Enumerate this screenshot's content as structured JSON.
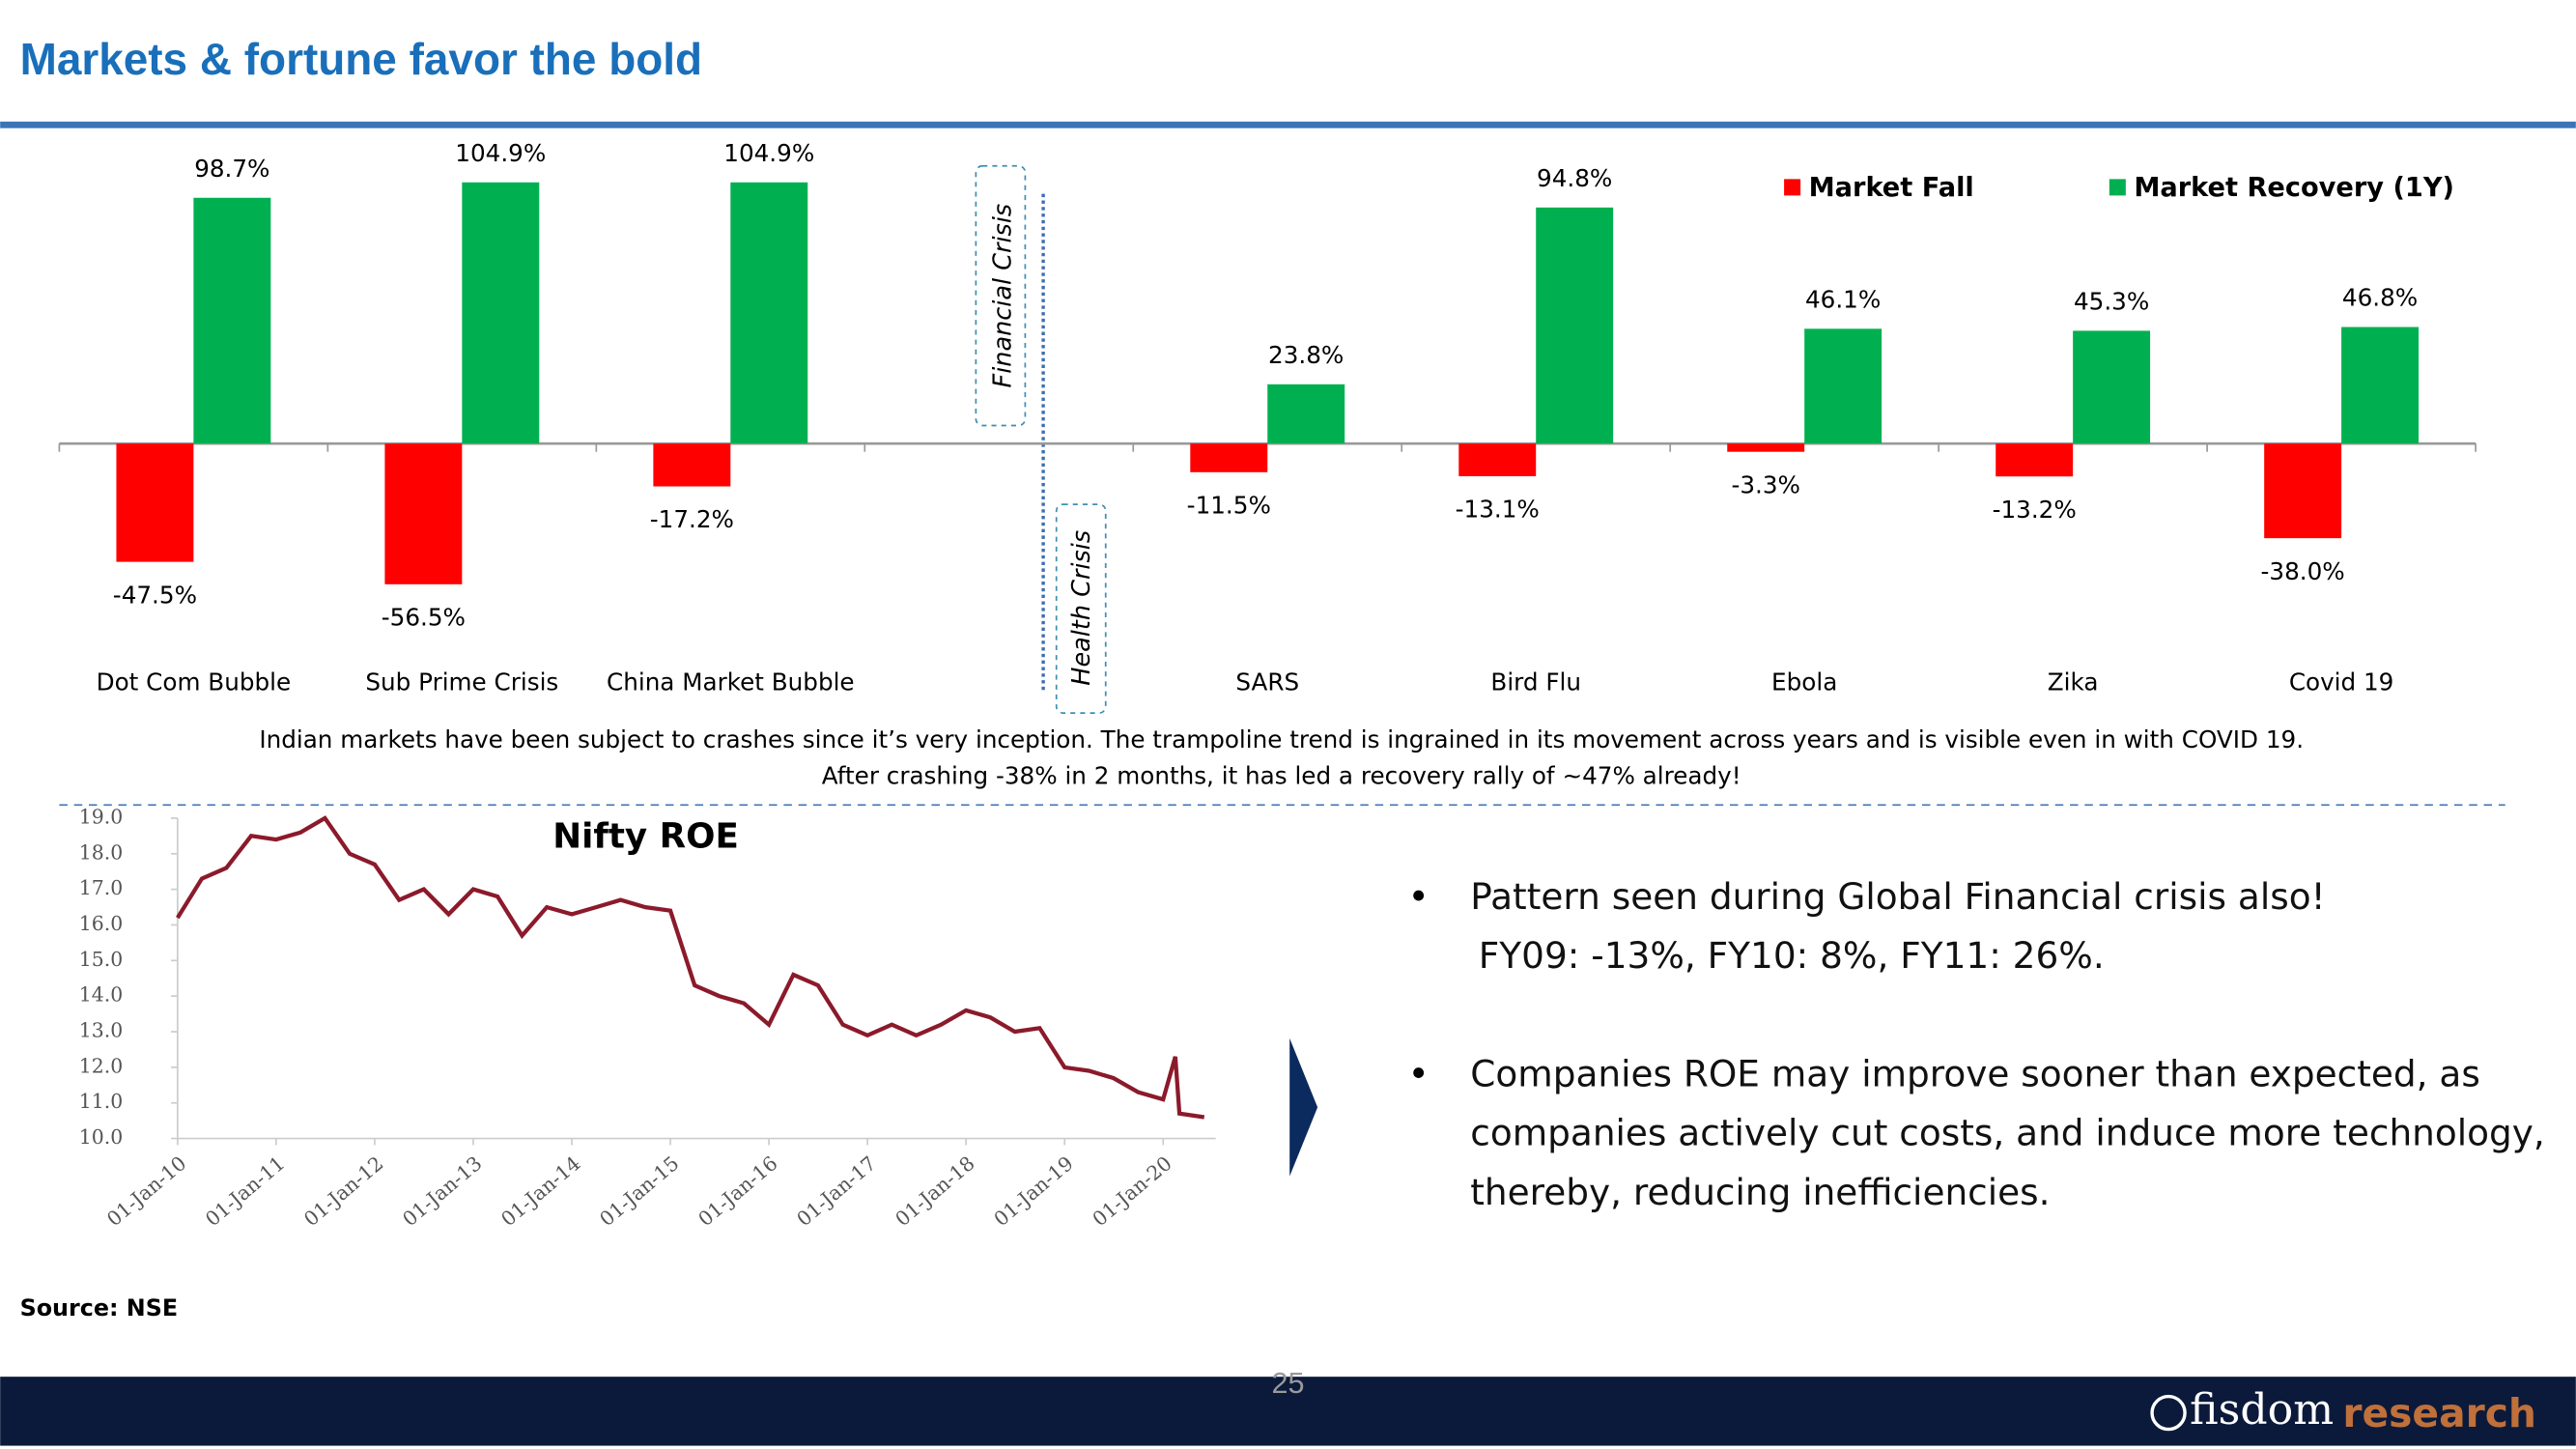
{
  "slide": {
    "title": "Markets & fortune favor the bold",
    "caption": [
      "Indian markets have been subject to crashes since it’s very inception. The trampoline trend is ingrained in its movement across years and is visible even in with COVID 19.",
      "After crashing -38% in 2 months, it has led a recovery rally of ~47% already!"
    ],
    "bullets": [
      {
        "lines": [
          "Pattern seen during Global Financial crisis also!",
          "FY09: -13%, FY10: 8%, FY11: 26%."
        ]
      },
      {
        "lines": [
          "Companies ROE may improve sooner than expected, as",
          "companies actively cut costs, and induce more technology,",
          "thereby, reducing inefficiencies."
        ]
      }
    ],
    "source": "Source: NSE",
    "page_number": "25",
    "logo": {
      "name": "fisdom",
      "suffix": "research"
    }
  },
  "chart_data": [
    {
      "type": "bar",
      "categories": [
        "Dot Com Bubble",
        "Sub Prime Crisis",
        "China Market Bubble",
        null,
        "SARS",
        "Bird Flu",
        "Ebola",
        "Zika",
        "Covid 19"
      ],
      "series": [
        {
          "name": "Market Fall",
          "color": "#ff0000",
          "values": [
            -47.5,
            -56.5,
            -17.2,
            null,
            -11.5,
            -13.1,
            -3.3,
            -13.2,
            -38.0
          ],
          "value_labels": [
            "-47.5%",
            "-56.5%",
            "-17.2%",
            null,
            "-11.5%",
            "-13.1%",
            "-3.3%",
            "-13.2%",
            "-38.0%"
          ]
        },
        {
          "name": "Market Recovery (1Y)",
          "color": "#00b050",
          "values": [
            98.7,
            104.9,
            104.9,
            null,
            23.8,
            94.8,
            46.1,
            45.3,
            46.8
          ],
          "value_labels": [
            "98.7%",
            "104.9%",
            "104.9%",
            null,
            "23.8%",
            "94.8%",
            "46.1%",
            "45.3%",
            "46.8%"
          ]
        }
      ],
      "annotations": [
        "Financial Crisis",
        "Health Crisis"
      ],
      "legend": "top-right"
    },
    {
      "type": "line",
      "title": "Nifty ROE",
      "color": "#8b1a2b",
      "x": [
        "2010-01-01",
        "2010-04-01",
        "2010-07-01",
        "2010-10-01",
        "2011-01-01",
        "2011-04-01",
        "2011-07-01",
        "2011-10-01",
        "2012-01-01",
        "2012-04-01",
        "2012-07-01",
        "2012-10-01",
        "2013-01-01",
        "2013-04-01",
        "2013-07-01",
        "2013-10-01",
        "2014-01-01",
        "2014-04-01",
        "2014-07-01",
        "2014-10-01",
        "2015-01-01",
        "2015-04-01",
        "2015-07-01",
        "2015-10-01",
        "2016-01-01",
        "2016-04-01",
        "2016-07-01",
        "2016-10-01",
        "2017-01-01",
        "2017-04-01",
        "2017-07-01",
        "2017-10-01",
        "2018-01-01",
        "2018-04-01",
        "2018-07-01",
        "2018-10-01",
        "2019-01-01",
        "2019-04-01",
        "2019-07-01",
        "2019-10-01",
        "2020-01-01",
        "2020-02-15",
        "2020-03-01",
        "2020-06-01"
      ],
      "values": [
        16.2,
        17.3,
        17.6,
        18.5,
        18.4,
        18.6,
        19.0,
        18.0,
        17.7,
        16.7,
        17.0,
        16.3,
        17.0,
        16.8,
        15.7,
        16.5,
        16.3,
        16.5,
        16.7,
        16.5,
        16.4,
        14.3,
        14.0,
        13.8,
        13.2,
        14.6,
        14.3,
        13.2,
        12.9,
        13.2,
        12.9,
        13.2,
        13.6,
        13.4,
        13.0,
        13.1,
        12.0,
        11.9,
        11.7,
        11.3,
        11.1,
        12.3,
        10.7,
        10.6
      ],
      "ylim": [
        10,
        19
      ],
      "yticks": [
        {
          "value": 10,
          "label": "10.0"
        },
        {
          "value": 11,
          "label": "11.0"
        },
        {
          "value": 12,
          "label": "12.0"
        },
        {
          "value": 13,
          "label": "13.0"
        },
        {
          "value": 14,
          "label": "14.0"
        },
        {
          "value": 15,
          "label": "15.0"
        },
        {
          "value": 16,
          "label": "16.0"
        },
        {
          "value": 17,
          "label": "17.0"
        },
        {
          "value": 18,
          "label": "18.0"
        },
        {
          "value": 19,
          "label": "19.0"
        }
      ],
      "xticks": [
        {
          "value": "2010-01-01",
          "label": "01-Jan-10"
        },
        {
          "value": "2011-01-01",
          "label": "01-Jan-11"
        },
        {
          "value": "2012-01-01",
          "label": "01-Jan-12"
        },
        {
          "value": "2013-01-01",
          "label": "01-Jan-13"
        },
        {
          "value": "2014-01-01",
          "label": "01-Jan-14"
        },
        {
          "value": "2015-01-01",
          "label": "01-Jan-15"
        },
        {
          "value": "2016-01-01",
          "label": "01-Jan-16"
        },
        {
          "value": "2017-01-01",
          "label": "01-Jan-17"
        },
        {
          "value": "2018-01-01",
          "label": "01-Jan-18"
        },
        {
          "value": "2019-01-01",
          "label": "01-Jan-19"
        },
        {
          "value": "2020-01-01",
          "label": "01-Jan-20"
        }
      ]
    }
  ]
}
